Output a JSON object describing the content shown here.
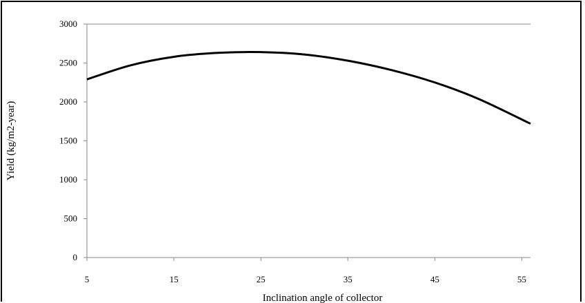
{
  "chart_data": {
    "type": "line",
    "title": "",
    "xlabel": "Inclination angle of collector",
    "ylabel": "Yield (kg/m2-year)",
    "xlim": [
      5,
      56
    ],
    "ylim": [
      0,
      3000
    ],
    "x_ticks": [
      5,
      15,
      25,
      35,
      45,
      55
    ],
    "y_ticks": [
      0,
      500,
      1000,
      1500,
      2000,
      2500,
      3000
    ],
    "grid": false,
    "legend": "none",
    "line_color": "#000000",
    "series": [
      {
        "x": [
          5,
          10,
          15,
          20,
          25,
          30,
          35,
          40,
          45,
          50,
          56
        ],
        "values": [
          2290,
          2470,
          2580,
          2630,
          2640,
          2610,
          2530,
          2410,
          2250,
          2040,
          1720
        ]
      }
    ]
  }
}
